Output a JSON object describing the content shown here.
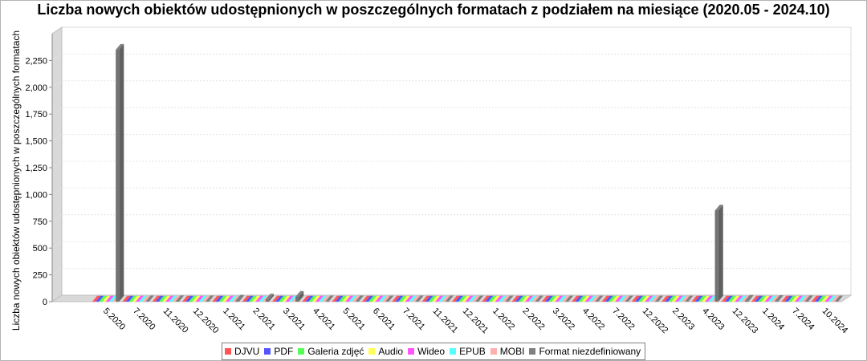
{
  "chart_data": {
    "type": "bar",
    "title": "Liczba nowych obiektów udostępnionych w poszczególnych formatach z podziałem na miesiące (2020.05 - 2024.10)",
    "xlabel": "",
    "ylabel": "Liczba nowych obiektów udostępnionych w poszczególnych formatach",
    "ylim": [
      0,
      2500
    ],
    "yticks": [
      0,
      250,
      500,
      750,
      1000,
      1250,
      1500,
      1750,
      2000,
      2250
    ],
    "ytick_labels": [
      "0",
      "250",
      "500",
      "750",
      "1,000",
      "1,250",
      "1,500",
      "1,750",
      "2,000",
      "2,250"
    ],
    "grid": true,
    "legend_position": "bottom",
    "categories": [
      "5.2020",
      "7.2020",
      "11.2020",
      "12.2020",
      "1.2021",
      "2.2021",
      "3.2021",
      "4.2021",
      "5.2021",
      "6.2021",
      "7.2021",
      "11.2021",
      "12.2021",
      "1.2022",
      "2.2022",
      "3.2022",
      "4.2022",
      "7.2022",
      "12.2022",
      "2.2023",
      "4.2023",
      "12.2023",
      "1.2024",
      "7.2024",
      "10.2024"
    ],
    "series": [
      {
        "name": "DJVU",
        "color": "#ff5555",
        "values": [
          0,
          0,
          0,
          0,
          0,
          0,
          0,
          0,
          0,
          0,
          0,
          0,
          0,
          0,
          0,
          0,
          0,
          0,
          0,
          0,
          0,
          0,
          0,
          0,
          0
        ]
      },
      {
        "name": "PDF",
        "color": "#5555ff",
        "values": [
          0,
          0,
          0,
          0,
          0,
          0,
          0,
          0,
          0,
          0,
          0,
          0,
          0,
          0,
          0,
          0,
          0,
          0,
          0,
          0,
          0,
          0,
          0,
          0,
          0
        ]
      },
      {
        "name": "Galeria zdjęć",
        "color": "#55ff55",
        "values": [
          0,
          0,
          0,
          0,
          0,
          0,
          0,
          0,
          0,
          0,
          0,
          0,
          0,
          0,
          0,
          0,
          0,
          0,
          0,
          0,
          0,
          0,
          0,
          0,
          0
        ]
      },
      {
        "name": "Audio",
        "color": "#ffff55",
        "values": [
          0,
          0,
          0,
          0,
          0,
          0,
          0,
          0,
          0,
          0,
          0,
          0,
          0,
          0,
          0,
          0,
          0,
          0,
          0,
          0,
          0,
          0,
          0,
          0,
          0
        ]
      },
      {
        "name": "Wideo",
        "color": "#ff55ff",
        "values": [
          0,
          0,
          0,
          0,
          0,
          0,
          0,
          0,
          0,
          0,
          0,
          0,
          0,
          0,
          0,
          0,
          0,
          0,
          0,
          0,
          0,
          0,
          0,
          0,
          0
        ]
      },
      {
        "name": "EPUB",
        "color": "#55ffff",
        "values": [
          0,
          0,
          0,
          0,
          0,
          0,
          0,
          0,
          0,
          0,
          0,
          0,
          0,
          0,
          0,
          0,
          0,
          0,
          0,
          0,
          0,
          0,
          0,
          0,
          0
        ]
      },
      {
        "name": "MOBI",
        "color": "#ffafaf",
        "values": [
          0,
          0,
          0,
          0,
          0,
          0,
          0,
          0,
          0,
          0,
          0,
          0,
          0,
          0,
          0,
          0,
          0,
          0,
          0,
          0,
          0,
          0,
          0,
          0,
          0
        ]
      },
      {
        "name": "Format niezdefiniowany",
        "color": "#808080",
        "values": [
          2350,
          2,
          3,
          2,
          10,
          20,
          45,
          2,
          2,
          1,
          2,
          2,
          1,
          1,
          1,
          1,
          1,
          1,
          1,
          1,
          850,
          8,
          6,
          3,
          1
        ]
      }
    ]
  }
}
